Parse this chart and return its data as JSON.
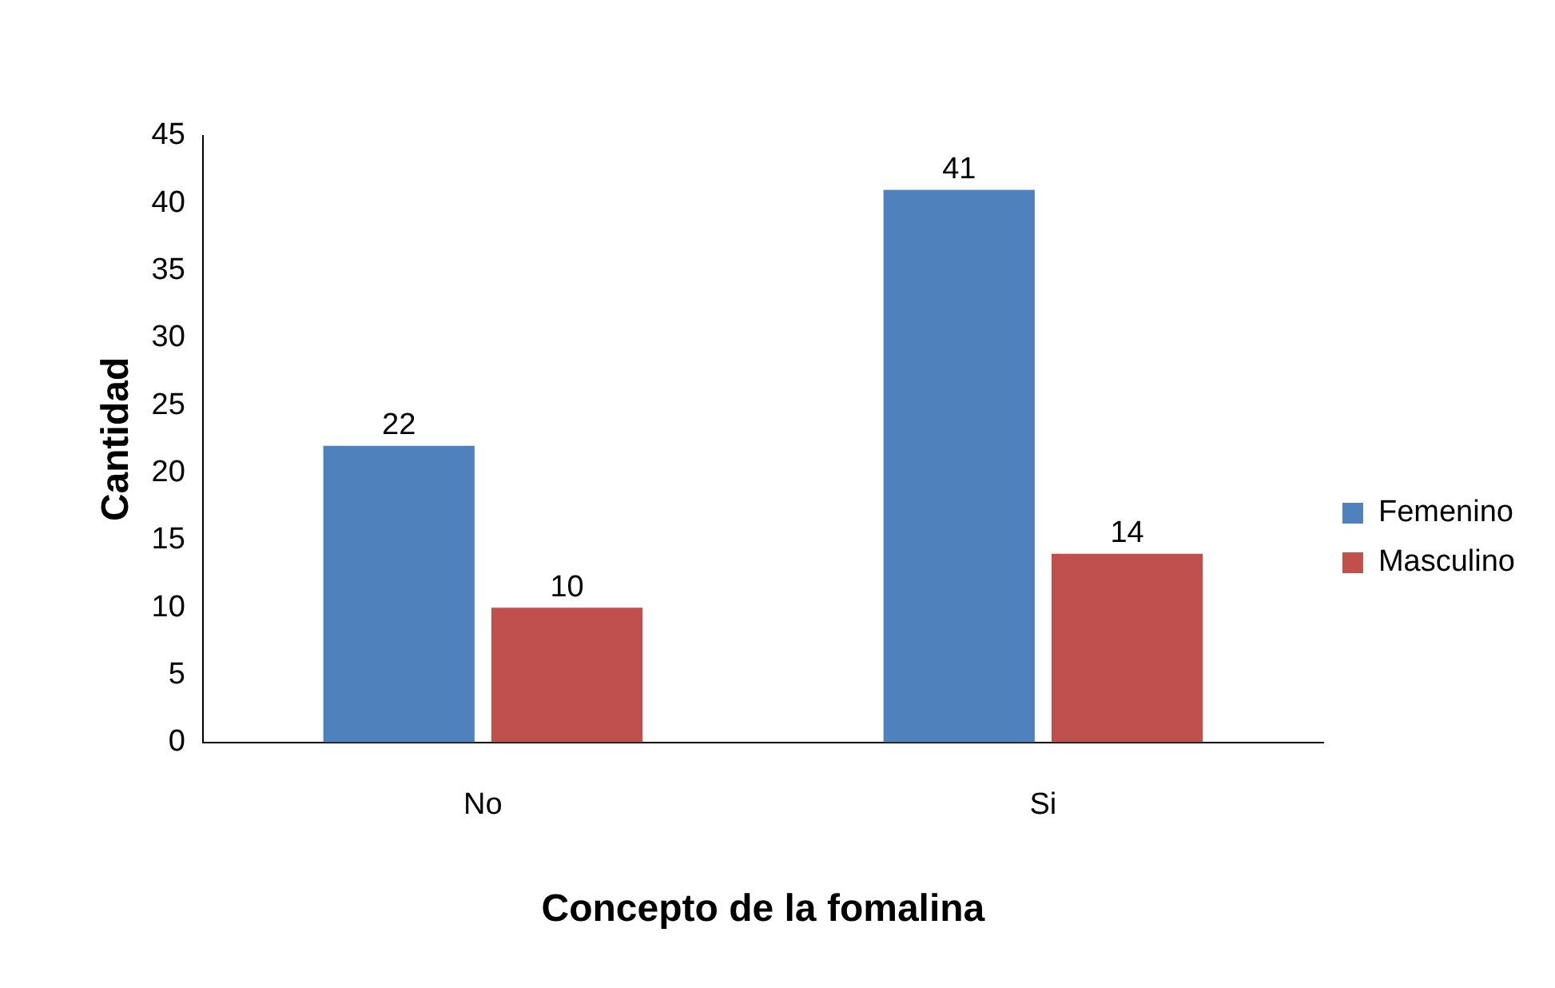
{
  "chart_data": {
    "type": "bar",
    "xlabel": "Concepto de la fomalina",
    "ylabel": "Cantidad",
    "categories": [
      "No",
      "Si"
    ],
    "series": [
      {
        "name": "Femenino",
        "color": "#4f81bd",
        "values": [
          22,
          41
        ]
      },
      {
        "name": "Masculino",
        "color": "#c0504d",
        "values": [
          10,
          14
        ]
      }
    ],
    "ylim": [
      0,
      45
    ],
    "yticks": [
      0,
      5,
      10,
      15,
      20,
      25,
      30,
      35,
      40,
      45
    ],
    "data_labels": true,
    "legend": "right"
  }
}
